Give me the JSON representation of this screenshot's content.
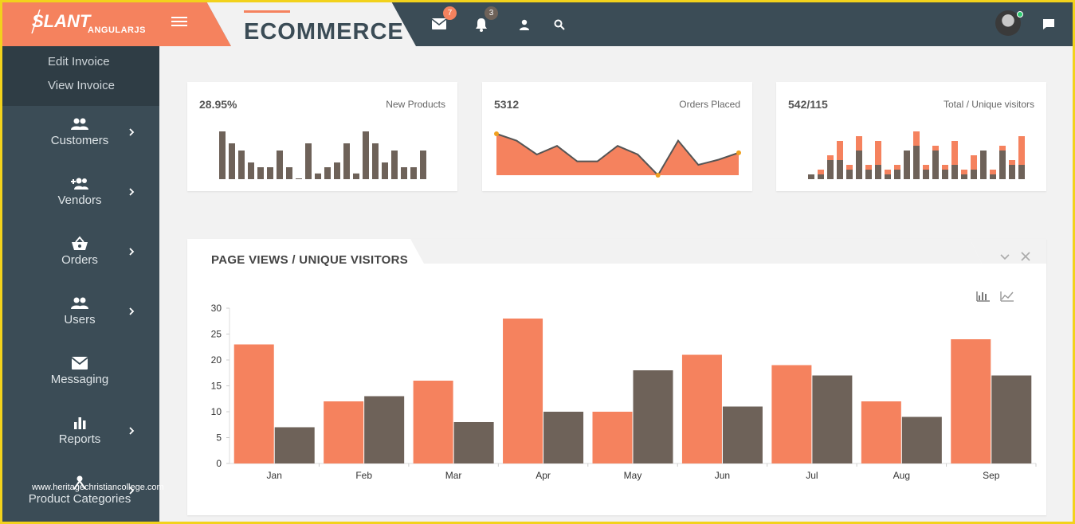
{
  "brand": {
    "logo": "SLANT",
    "sub": "ANGULARJS",
    "accent": "#f5825e"
  },
  "header": {
    "title": "ECOMMERCE",
    "mail_count": "7",
    "notif_count": "3"
  },
  "sidebar": {
    "sub_items": [
      "Edit Invoice",
      "View Invoice"
    ],
    "items": [
      {
        "label": "Customers",
        "icon": "people-icon",
        "has_submenu": true
      },
      {
        "label": "Vendors",
        "icon": "add-people-icon",
        "has_submenu": true
      },
      {
        "label": "Orders",
        "icon": "basket-icon",
        "has_submenu": true
      },
      {
        "label": "Users",
        "icon": "people-icon",
        "has_submenu": true
      },
      {
        "label": "Messaging",
        "icon": "envelope-icon",
        "has_submenu": false
      },
      {
        "label": "Reports",
        "icon": "bar-chart-icon",
        "has_submenu": true
      },
      {
        "label": "Product Categories",
        "icon": "hierarchy-icon",
        "has_submenu": true
      }
    ]
  },
  "stats": [
    {
      "value": "28.95%",
      "label": "New Products"
    },
    {
      "value": "5312",
      "label": "Orders Placed"
    },
    {
      "value": "542/115",
      "label": "Total / Unique visitors"
    }
  ],
  "sparklines": {
    "new_products": [
      10,
      7.5,
      6,
      3.5,
      2.5,
      2.5,
      6,
      2.5,
      0,
      7.5,
      1.2,
      2.5,
      3.5,
      7.5,
      1.2,
      10,
      7.5,
      3.5,
      6,
      2.5,
      2.5,
      6
    ],
    "orders_placed": [
      10,
      8,
      4,
      6.5,
      2,
      2,
      6.5,
      4,
      -2,
      8,
      1,
      2.5,
      4.5
    ],
    "visitors_total": [
      1,
      2,
      5,
      8,
      3,
      9,
      3,
      8,
      2,
      3,
      6,
      10,
      3,
      7,
      3,
      8,
      2,
      5,
      6,
      2,
      7,
      4,
      9
    ],
    "visitors_unique": [
      1,
      1,
      4,
      4,
      2,
      6,
      2,
      3,
      1,
      2,
      6,
      7,
      2,
      6,
      2,
      3,
      1,
      2,
      6,
      1,
      6,
      3,
      3
    ]
  },
  "panel": {
    "title": "PAGE VIEWS / UNIQUE VISITORS",
    "collapse_icon": "chevron-down-icon",
    "close_icon": "close-icon"
  },
  "chart_data": {
    "type": "bar",
    "title": "PAGE VIEWS / UNIQUE VISITORS",
    "categories": [
      "Jan",
      "Feb",
      "Mar",
      "Apr",
      "May",
      "Jun",
      "Jul",
      "Aug",
      "Sep"
    ],
    "series": [
      {
        "values": [
          23,
          12,
          16,
          28,
          10,
          21,
          19,
          12,
          24
        ],
        "color": "#f5825e"
      },
      {
        "values": [
          7,
          13,
          8,
          10,
          18,
          11,
          17,
          9,
          17
        ],
        "color": "#6e6259"
      }
    ],
    "ylim": [
      0,
      30
    ],
    "yticks": [
      0,
      5,
      10,
      15,
      20,
      25,
      30
    ],
    "legend": "none",
    "grid": false
  },
  "watermark": "www.heritagechristiancollege.com",
  "colors": {
    "orange": "#f5825e",
    "dark": "#3b4c56",
    "brown": "#6e6259",
    "badge_dark": "#6e6259"
  }
}
